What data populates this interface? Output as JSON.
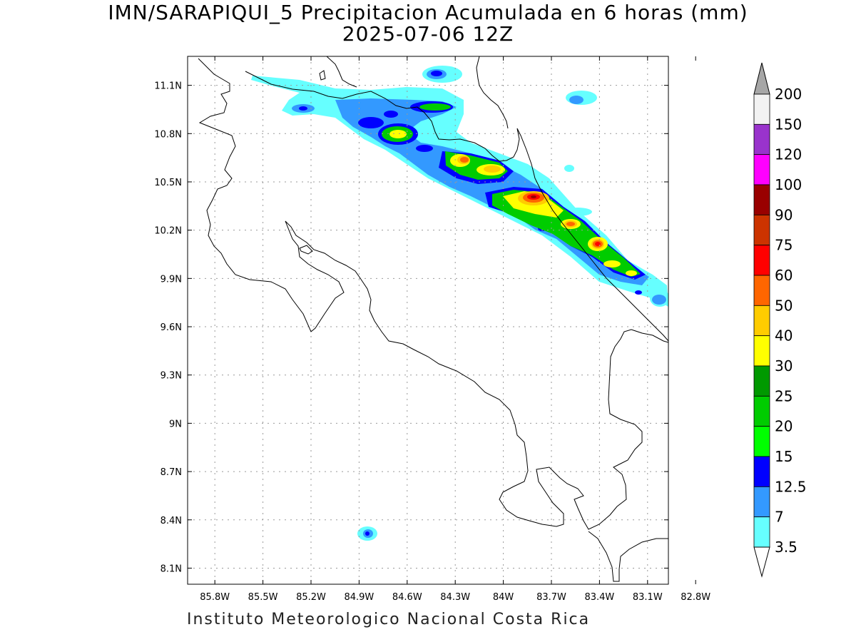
{
  "title": {
    "line1": "IMN/SARAPIQUI_5 Precipitacion Acumulada en 6 horas (mm)",
    "line2": "2025-07-06 12Z"
  },
  "footer": "Instituto Meteorologico Nacional Costa Rica",
  "map": {
    "lon_range": [
      -85.97,
      -82.97
    ],
    "lat_range": [
      8.0,
      11.28
    ],
    "lon_ticks": [
      "85.8W",
      "85.5W",
      "85.2W",
      "84.9W",
      "84.6W",
      "84.3W",
      "84W",
      "83.7W",
      "83.4W",
      "83.1W",
      "82.8W"
    ],
    "lon_values": [
      -85.8,
      -85.5,
      -85.2,
      -84.9,
      -84.6,
      -84.3,
      -84.0,
      -83.7,
      -83.4,
      -83.1,
      -82.8
    ],
    "lat_ticks": [
      "11.1N",
      "10.8N",
      "10.5N",
      "10.2N",
      "9.9N",
      "9.6N",
      "9.3N",
      "9N",
      "8.7N",
      "8.4N",
      "8.1N"
    ],
    "lat_values": [
      11.1,
      10.8,
      10.5,
      10.2,
      9.9,
      9.6,
      9.3,
      9.0,
      8.7,
      8.4,
      8.1
    ],
    "grid": true
  },
  "legend": {
    "levels": [
      "200",
      "150",
      "120",
      "100",
      "90",
      "75",
      "60",
      "50",
      "40",
      "30",
      "25",
      "20",
      "15",
      "12.5",
      "7",
      "3.5"
    ],
    "colors": [
      "#f2f2f2",
      "#9933cc",
      "#ff00ff",
      "#990000",
      "#cc3300",
      "#ff0000",
      "#ff6600",
      "#ffcc00",
      "#ffff00",
      "#009900",
      "#00cc00",
      "#00ff00",
      "#0000ff",
      "#3399ff",
      "#66ffff"
    ],
    "top_arrow_color": "#a6a6a6",
    "bottom_arrow_color": "#ffffff"
  }
}
